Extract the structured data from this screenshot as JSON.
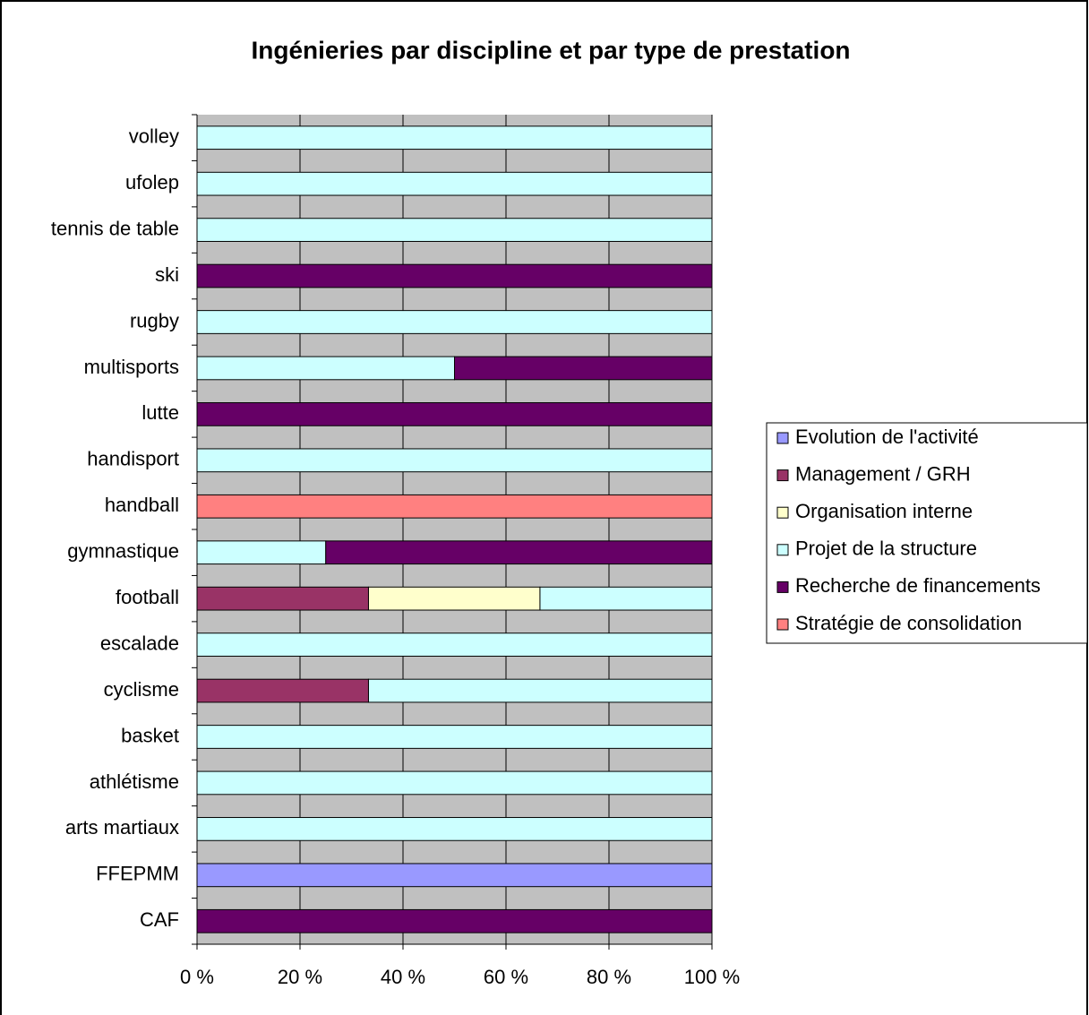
{
  "chart_data": {
    "type": "stacked-bar-horizontal",
    "title": "Ingénieries par discipline et par type de prestation",
    "categories": [
      "CAF",
      "FFEPMM",
      "arts martiaux",
      "athlétisme",
      "basket",
      "cyclisme",
      "escalade",
      "football",
      "gymnastique",
      "handball",
      "handisport",
      "lutte",
      "multisports",
      "rugby",
      "ski",
      "tennis de table",
      "ufolep",
      "volley"
    ],
    "series": [
      {
        "name": "Evolution de l'activité",
        "color": "#9999ff",
        "values": [
          0,
          100,
          0,
          0,
          0,
          0,
          0,
          0,
          0,
          0,
          0,
          0,
          0,
          0,
          0,
          0,
          0,
          0
        ]
      },
      {
        "name": "Management / GRH",
        "color": "#993366",
        "values": [
          0,
          0,
          0,
          0,
          0,
          33.3,
          0,
          33.3,
          0,
          0,
          0,
          0,
          0,
          0,
          0,
          0,
          0,
          0
        ]
      },
      {
        "name": "Organisation interne",
        "color": "#ffffcc",
        "values": [
          0,
          0,
          0,
          0,
          0,
          0,
          0,
          33.3,
          0,
          0,
          0,
          0,
          0,
          0,
          0,
          0,
          0,
          0
        ]
      },
      {
        "name": "Projet de la structure",
        "color": "#ccffff",
        "values": [
          0,
          0,
          100,
          100,
          100,
          66.7,
          100,
          33.4,
          25,
          0,
          100,
          0,
          50,
          100,
          0,
          100,
          100,
          100
        ]
      },
      {
        "name": "Recherche de financements",
        "color": "#660066",
        "values": [
          100,
          0,
          0,
          0,
          0,
          0,
          0,
          0,
          75,
          0,
          0,
          100,
          50,
          0,
          100,
          0,
          0,
          0
        ]
      },
      {
        "name": "Stratégie de consolidation",
        "color": "#ff8080",
        "values": [
          0,
          0,
          0,
          0,
          0,
          0,
          0,
          0,
          0,
          100,
          0,
          0,
          0,
          0,
          0,
          0,
          0,
          0
        ]
      }
    ],
    "xlim": [
      0,
      100
    ],
    "xticks": [
      {
        "value": 0,
        "label": "0 %"
      },
      {
        "value": 20,
        "label": "20 %"
      },
      {
        "value": 40,
        "label": "40 %"
      },
      {
        "value": 60,
        "label": "60 %"
      },
      {
        "value": 80,
        "label": "80 %"
      },
      {
        "value": 100,
        "label": "100 %"
      }
    ],
    "grid": true,
    "legend": "right"
  }
}
